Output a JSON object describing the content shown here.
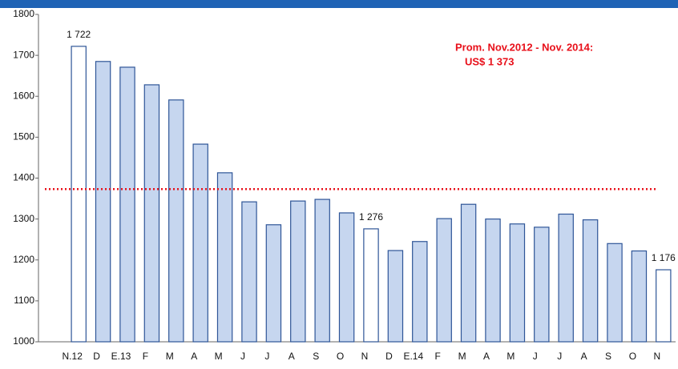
{
  "chart_data": {
    "type": "bar",
    "categories": [
      "N.12",
      "D",
      "E.13",
      "F",
      "M",
      "A",
      "M",
      "J",
      "J",
      "A",
      "S",
      "O",
      "N",
      "D",
      "E.14",
      "F",
      "M",
      "A",
      "M",
      "J",
      "J",
      "A",
      "S",
      "O",
      "N"
    ],
    "values": [
      1722,
      1685,
      1671,
      1628,
      1591,
      1483,
      1413,
      1342,
      1286,
      1344,
      1348,
      1315,
      1276,
      1223,
      1245,
      1301,
      1336,
      1300,
      1288,
      1280,
      1312,
      1298,
      1240,
      1222,
      1176
    ],
    "value_labels": [
      "1 722",
      null,
      null,
      null,
      null,
      null,
      null,
      null,
      null,
      null,
      null,
      null,
      "1 276",
      null,
      null,
      null,
      null,
      null,
      null,
      null,
      null,
      null,
      null,
      null,
      "1 176"
    ],
    "colors": [
      "#ffffff",
      "#c6d6ef",
      "#c6d6ef",
      "#c6d6ef",
      "#c6d6ef",
      "#c6d6ef",
      "#c6d6ef",
      "#c6d6ef",
      "#c6d6ef",
      "#c6d6ef",
      "#c6d6ef",
      "#c6d6ef",
      "#ffffff",
      "#c6d6ef",
      "#c6d6ef",
      "#c6d6ef",
      "#c6d6ef",
      "#c6d6ef",
      "#c6d6ef",
      "#c6d6ef",
      "#c6d6ef",
      "#c6d6ef",
      "#c6d6ef",
      "#c6d6ef",
      "#ffffff"
    ],
    "border_color": "#2e5597",
    "ylim": [
      1000,
      1800
    ],
    "yticks": [
      1000,
      1100,
      1200,
      1300,
      1400,
      1500,
      1600,
      1700,
      1800
    ],
    "average": {
      "value": 1373,
      "color": "#e8101a"
    },
    "annotations": [
      "Prom. Nov.2012 - Nov. 2014:",
      "US$ 1 373"
    ]
  }
}
